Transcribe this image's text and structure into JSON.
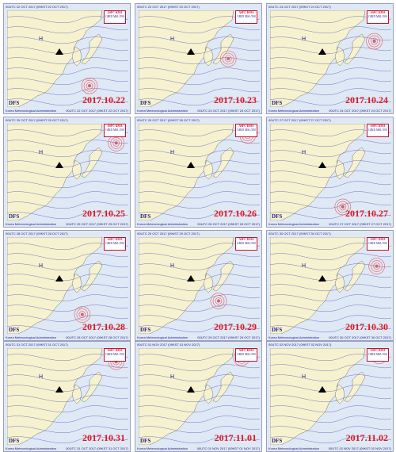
{
  "panels": [
    {
      "date": "2017.10.22",
      "header": "00UTC 22 OCT 2017 (09KST 22 OCT 2017)",
      "footer": "00UTC 22 OCT 2017 (09KST 22 OCT 2017)",
      "low": [
        0.68,
        0.78
      ]
    },
    {
      "date": "2017.10.23",
      "header": "00UTC 23 OCT 2017 (09KST 23 OCT 2017)",
      "footer": "00UTC 23 OCT 2017 (09KST 23 OCT 2017)",
      "low": [
        0.74,
        0.5
      ]
    },
    {
      "date": "2017.10.24",
      "header": "00UTC 24 OCT 2017 (09KST 24 OCT 2017)",
      "footer": "00UTC 24 OCT 2017 (09KST 24 OCT 2017)",
      "low": [
        0.86,
        0.32
      ]
    },
    {
      "date": "2017.10.25",
      "header": "00UTC 25 OCT 2017 (09KST 25 OCT 2017)",
      "footer": "00UTC 25 OCT 2017 (09KST 25 OCT 2017)",
      "low": [
        0.9,
        0.2
      ]
    },
    {
      "date": "2017.10.26",
      "header": "00UTC 26 OCT 2017 (09KST 26 OCT 2017)",
      "footer": "00UTC 26 OCT 2017 (09KST 26 OCT 2017)",
      "low": [
        0.9,
        0.12
      ]
    },
    {
      "date": "2017.10.27",
      "header": "00UTC 27 OCT 2017 (09KST 27 OCT 2017)",
      "footer": "00UTC 27 OCT 2017 (09KST 27 OCT 2017)",
      "low": [
        0.6,
        0.86
      ]
    },
    {
      "date": "2017.10.28",
      "header": "00UTC 28 OCT 2017 (09KST 28 OCT 2017)",
      "footer": "00UTC 28 OCT 2017 (09KST 28 OCT 2017)",
      "low": [
        0.62,
        0.8
      ]
    },
    {
      "date": "2017.10.29",
      "header": "00UTC 29 OCT 2017 (09KST 29 OCT 2017)",
      "footer": "00UTC 29 OCT 2017 (09KST 29 OCT 2017)",
      "low": [
        0.66,
        0.66
      ]
    },
    {
      "date": "2017.10.30",
      "header": "00UTC 30 OCT 2017 (09KST 30 OCT 2017)",
      "footer": "00UTC 30 OCT 2017 (09KST 30 OCT 2017)",
      "low": [
        0.88,
        0.3
      ]
    },
    {
      "date": "2017.10.31",
      "header": "00UTC 31 OCT 2017 (09KST 31 OCT 2017)",
      "footer": "00UTC 31 OCT 2017 (09KST 31 OCT 2017)",
      "low": [
        0.9,
        0.14
      ]
    },
    {
      "date": "2017.11.01",
      "header": "00UTC 01 NOV 2017 (09KST 01 NOV 2017)",
      "footer": "00UTC 01 NOV 2017 (09KST 01 NOV 2017)",
      "low": [
        0.85,
        0.1
      ]
    },
    {
      "date": "2017.11.02",
      "header": "00UTC 02 NOV 2017 (09KST 02 NOV 2017)",
      "footer": "00UTC 02 NOV 2017 (09KST 02 NOV 2017)",
      "low": [
        0.9,
        0.08
      ]
    }
  ],
  "common": {
    "dfs": "DFS",
    "agency": "Korea Meteorological Administration",
    "logo_line1": "ASFC KMA",
    "logo_line2": "GRID MSL/500",
    "colors": {
      "land": "#f6f2cf",
      "sea": "#dfe8f5",
      "isobar": "#3c46b4",
      "low_fill": "#e65a5a",
      "date": "#e0141e"
    },
    "icons": [
      "triangle-marker-icon",
      "high-pressure-icon",
      "low-pressure-icon"
    ]
  }
}
